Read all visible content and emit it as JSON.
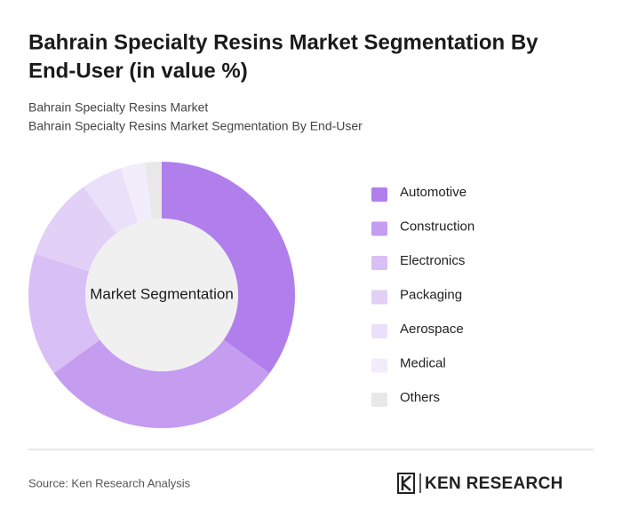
{
  "chart_data": {
    "type": "donut",
    "title_lines": [
      "Bahrain Specialty Resins Market Segmentation By",
      "End-User (in value %)"
    ],
    "subtitle_lines": [
      "Bahrain Specialty Resins Market",
      "Bahrain Specialty Resins Market Segmentation By End-User"
    ],
    "center_label": "Market Segmentation",
    "categories": [
      "Automotive",
      "Construction",
      "Electronics",
      "Packaging",
      "Aerospace",
      "Medical",
      "Others"
    ],
    "values": [
      35,
      30,
      15,
      10,
      5,
      3,
      2
    ],
    "colors": [
      "#b07fec",
      "#c49cf0",
      "#d8bff5",
      "#e2d0f7",
      "#ebe0f9",
      "#f2ecfb",
      "#e8e8e8"
    ],
    "legend": "right"
  },
  "footer": {
    "source": "Source: Ken Research Analysis",
    "logo": "KEN RESEARCH"
  }
}
